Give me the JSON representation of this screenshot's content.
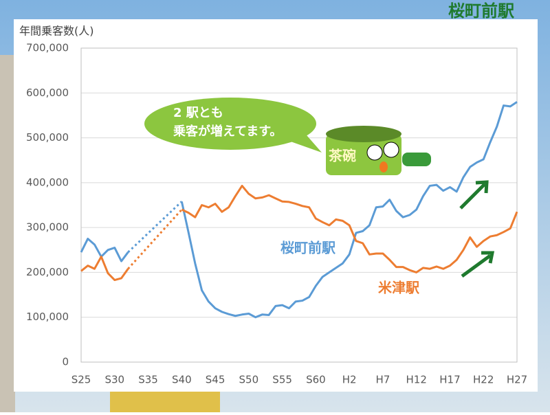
{
  "chart_data": {
    "type": "line",
    "title": "年間乗客数(人)",
    "logo": "桜町前駅",
    "annotations": {
      "bubble": [
        "2 駅とも",
        "乗客が増えてます。"
      ],
      "mascot": "茶碗"
    },
    "categories": [
      "S25",
      null,
      null,
      null,
      null,
      "S30",
      null,
      null,
      null,
      null,
      "S35",
      null,
      null,
      null,
      null,
      "S40",
      null,
      null,
      null,
      null,
      "S45",
      null,
      null,
      null,
      null,
      "S50",
      null,
      null,
      null,
      null,
      "S55",
      null,
      null,
      null,
      null,
      "S60",
      null,
      null,
      null,
      null,
      "H2",
      null,
      null,
      null,
      null,
      "H7",
      null,
      null,
      null,
      null,
      "H12",
      null,
      null,
      null,
      null,
      "H17",
      null,
      null,
      null,
      null,
      "H22",
      null,
      null,
      null,
      null,
      "H27"
    ],
    "series": [
      {
        "name": "桜町前駅",
        "color": "#5b9bd5",
        "values": [
          245000,
          275000,
          262000,
          235000,
          250000,
          255000,
          225000,
          245000,
          null,
          null,
          null,
          null,
          null,
          null,
          null,
          358000,
          290000,
          220000,
          160000,
          135000,
          120000,
          112000,
          107000,
          103000,
          106000,
          108000,
          100000,
          106000,
          105000,
          125000,
          127000,
          120000,
          135000,
          137000,
          145000,
          170000,
          190000,
          200000,
          210000,
          220000,
          240000,
          288000,
          292000,
          305000,
          345000,
          347000,
          362000,
          337000,
          323000,
          328000,
          340000,
          370000,
          393000,
          395000,
          382000,
          390000,
          380000,
          412000,
          435000,
          445000,
          452000,
          490000,
          525000,
          572000,
          570000,
          580000
        ]
      },
      {
        "name": "米津駅",
        "color": "#ed7d31",
        "values": [
          203000,
          215000,
          208000,
          235000,
          198000,
          183000,
          187000,
          208000,
          null,
          null,
          null,
          null,
          null,
          null,
          null,
          340000,
          333000,
          323000,
          350000,
          345000,
          353000,
          335000,
          345000,
          370000,
          393000,
          375000,
          365000,
          367000,
          372000,
          365000,
          358000,
          357000,
          353000,
          348000,
          345000,
          320000,
          312000,
          305000,
          318000,
          315000,
          305000,
          270000,
          265000,
          240000,
          242000,
          242000,
          228000,
          212000,
          212000,
          205000,
          200000,
          210000,
          208000,
          213000,
          208000,
          215000,
          228000,
          250000,
          278000,
          257000,
          270000,
          280000,
          283000,
          290000,
          298000,
          335000
        ]
      }
    ],
    "ylim": [
      0,
      700000
    ],
    "yticks": [
      0,
      {
        "value": 100000,
        "label": "100,000"
      },
      {
        "value": 200000,
        "label": "200,000"
      },
      {
        "value": 300000,
        "label": "300,000"
      },
      {
        "value": 400000,
        "label": "400,000"
      },
      {
        "value": 500000,
        "label": "500,000"
      },
      {
        "value": 600000,
        "label": "600,000"
      },
      {
        "value": 700000,
        "label": "700,000"
      }
    ],
    "grid": true
  }
}
